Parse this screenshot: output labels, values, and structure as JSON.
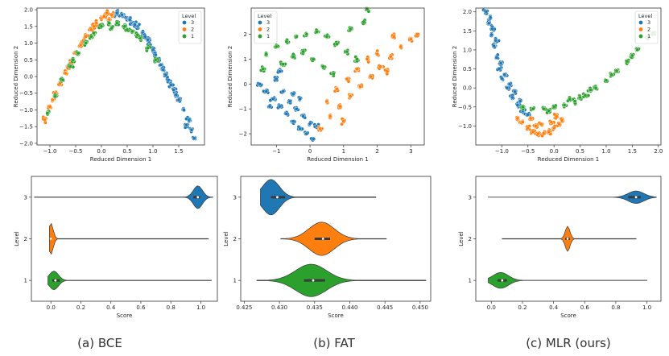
{
  "colors": {
    "level3": "#1f77b4",
    "level2": "#ff7f0e",
    "level1": "#2ca02c"
  },
  "captions": [
    "(a) BCE",
    "(b) FAT",
    "(c) MLR (ours)"
  ],
  "chart_data": [
    {
      "type": "scatter",
      "panel": "BCE-embedding",
      "xlabel": "Reduced Dimension 1",
      "ylabel": "Reduced Dimension 2",
      "xlim": [
        -1.25,
        2.0
      ],
      "ylim": [
        -2.05,
        2.05
      ],
      "xticks": [
        -1.0,
        -0.5,
        0.0,
        0.5,
        1.0,
        1.5
      ],
      "xtick_labels": [
        "−1.0",
        "−0.5",
        "0.0",
        "0.5",
        "1.0",
        "1.5"
      ],
      "yticks": [
        -2.0,
        -1.5,
        -1.0,
        -0.5,
        0.0,
        0.5,
        1.0,
        1.5,
        2.0
      ],
      "ytick_labels": [
        "−2.0",
        "−1.5",
        "−1.0",
        "−0.5",
        "0.0",
        "0.5",
        "1.0",
        "1.5",
        "2.0"
      ],
      "legend": {
        "title": "Level",
        "entries": [
          "3",
          "2",
          "1"
        ],
        "placement": "top-right"
      },
      "series": [
        {
          "name": "3",
          "points": [
            [
              1.8,
              -1.85
            ],
            [
              1.75,
              -1.6
            ],
            [
              1.7,
              -1.3
            ],
            [
              1.6,
              -1.0
            ],
            [
              1.5,
              -0.7
            ],
            [
              1.4,
              -0.4
            ],
            [
              1.3,
              -0.1
            ],
            [
              1.2,
              0.2
            ],
            [
              1.1,
              0.5
            ],
            [
              1.0,
              0.8
            ],
            [
              0.9,
              1.1
            ],
            [
              0.8,
              1.3
            ],
            [
              0.7,
              1.5
            ],
            [
              0.6,
              1.6
            ],
            [
              0.5,
              1.75
            ],
            [
              0.4,
              1.85
            ],
            [
              0.3,
              1.9
            ],
            [
              0.25,
              1.8
            ],
            [
              1.65,
              -1.45
            ],
            [
              1.45,
              -0.55
            ],
            [
              1.25,
              0.05
            ],
            [
              1.05,
              0.65
            ],
            [
              0.85,
              1.2
            ],
            [
              0.65,
              1.55
            ],
            [
              0.55,
              1.7
            ],
            [
              1.35,
              -0.25
            ],
            [
              1.15,
              0.35
            ],
            [
              0.95,
              0.95
            ]
          ]
        },
        {
          "name": "2",
          "points": [
            [
              -1.1,
              -1.3
            ],
            [
              -1.0,
              -0.9
            ],
            [
              -0.9,
              -0.5
            ],
            [
              -0.8,
              -0.2
            ],
            [
              -0.7,
              0.1
            ],
            [
              -0.6,
              0.4
            ],
            [
              -0.5,
              0.7
            ],
            [
              -0.4,
              0.95
            ],
            [
              -0.3,
              1.2
            ],
            [
              -0.2,
              1.4
            ],
            [
              -0.1,
              1.6
            ],
            [
              0.0,
              1.75
            ],
            [
              0.1,
              1.9
            ],
            [
              0.2,
              1.85
            ],
            [
              -0.95,
              -0.7
            ],
            [
              -0.65,
              0.25
            ],
            [
              -0.35,
              1.05
            ],
            [
              -0.15,
              1.5
            ],
            [
              0.05,
              1.8
            ],
            [
              0.15,
              1.7
            ]
          ]
        },
        {
          "name": "1",
          "points": [
            [
              -1.05,
              -1.1
            ],
            [
              -0.9,
              -0.6
            ],
            [
              -0.75,
              -0.1
            ],
            [
              -0.6,
              0.3
            ],
            [
              -0.45,
              0.7
            ],
            [
              -0.3,
              1.0
            ],
            [
              -0.15,
              1.3
            ],
            [
              0.0,
              1.5
            ],
            [
              0.15,
              1.6
            ],
            [
              0.3,
              1.6
            ],
            [
              0.45,
              1.5
            ],
            [
              0.6,
              1.35
            ],
            [
              0.75,
              1.15
            ],
            [
              0.9,
              0.85
            ],
            [
              1.05,
              0.5
            ],
            [
              -0.2,
              1.2
            ],
            [
              0.2,
              1.45
            ],
            [
              0.5,
              1.4
            ],
            [
              0.7,
              1.25
            ],
            [
              -0.55,
              0.5
            ]
          ]
        }
      ]
    },
    {
      "type": "scatter",
      "panel": "FAT-embedding",
      "xlabel": "Reduced Dimension 1",
      "ylabel": "Reduced Dimension 2",
      "xlim": [
        -1.75,
        3.4
      ],
      "ylim": [
        -2.45,
        3.05
      ],
      "xticks": [
        -1,
        0,
        1,
        2,
        3
      ],
      "xtick_labels": [
        "−1",
        "0",
        "1",
        "2",
        "3"
      ],
      "yticks": [
        -2,
        -1,
        0,
        1,
        2
      ],
      "ytick_labels": [
        "−2",
        "−1",
        "0",
        "1",
        "2"
      ],
      "legend": {
        "title": "Level",
        "entries": [
          "3",
          "2",
          "1"
        ],
        "placement": "top-left"
      },
      "series": [
        {
          "name": "3",
          "points": [
            [
              -1.5,
              0.0
            ],
            [
              -1.3,
              -0.3
            ],
            [
              -1.1,
              -0.6
            ],
            [
              -0.9,
              -0.9
            ],
            [
              -0.7,
              -1.2
            ],
            [
              -0.5,
              -1.5
            ],
            [
              -0.3,
              -1.8
            ],
            [
              -0.1,
              -2.0
            ],
            [
              0.1,
              -2.2
            ],
            [
              -0.8,
              -0.3
            ],
            [
              -0.6,
              -0.7
            ],
            [
              -0.4,
              -1.0
            ],
            [
              -0.2,
              -1.3
            ],
            [
              0.0,
              -1.6
            ],
            [
              -1.0,
              0.2
            ],
            [
              -0.5,
              -0.4
            ],
            [
              -1.2,
              -0.9
            ],
            [
              0.2,
              -1.7
            ],
            [
              -0.3,
              -0.6
            ],
            [
              -0.9,
              0.5
            ]
          ]
        },
        {
          "name": "2",
          "points": [
            [
              0.3,
              -1.8
            ],
            [
              0.6,
              -1.3
            ],
            [
              0.9,
              -0.9
            ],
            [
              1.2,
              -0.5
            ],
            [
              1.5,
              -0.1
            ],
            [
              1.8,
              0.3
            ],
            [
              2.1,
              0.7
            ],
            [
              2.4,
              1.1
            ],
            [
              2.7,
              1.5
            ],
            [
              3.0,
              1.8
            ],
            [
              3.2,
              2.0
            ],
            [
              0.8,
              -0.2
            ],
            [
              1.1,
              0.2
            ],
            [
              1.4,
              0.6
            ],
            [
              1.7,
              1.0
            ],
            [
              0.5,
              -0.7
            ],
            [
              2.0,
              1.2
            ],
            [
              2.3,
              0.5
            ],
            [
              1.0,
              -1.5
            ],
            [
              2.5,
              1.9
            ]
          ]
        },
        {
          "name": "1",
          "points": [
            [
              -1.3,
              1.2
            ],
            [
              -1.0,
              1.5
            ],
            [
              -0.7,
              1.7
            ],
            [
              -0.4,
              1.9
            ],
            [
              -0.1,
              2.0
            ],
            [
              0.2,
              2.1
            ],
            [
              0.5,
              1.9
            ],
            [
              0.8,
              1.6
            ],
            [
              1.1,
              1.3
            ],
            [
              1.4,
              1.0
            ],
            [
              -0.8,
              0.8
            ],
            [
              -0.5,
              1.1
            ],
            [
              -0.2,
              1.3
            ],
            [
              0.1,
              1.0
            ],
            [
              0.4,
              0.7
            ],
            [
              1.2,
              2.2
            ],
            [
              1.6,
              2.5
            ],
            [
              1.7,
              3.0
            ],
            [
              -1.4,
              0.6
            ],
            [
              0.7,
              0.4
            ]
          ]
        }
      ]
    },
    {
      "type": "scatter",
      "panel": "MLR-embedding",
      "xlabel": "Reduced Dimension 1",
      "ylabel": "Reduced Dimension 2",
      "xlim": [
        -1.5,
        2.05
      ],
      "ylim": [
        -1.5,
        2.1
      ],
      "xticks": [
        -1.0,
        -0.5,
        0.0,
        0.5,
        1.0,
        1.5,
        2.0
      ],
      "xtick_labels": [
        "−1.0",
        "−0.5",
        "0.0",
        "0.5",
        "1.0",
        "1.5",
        "2.0"
      ],
      "yticks": [
        -1.0,
        -0.5,
        0.0,
        0.5,
        1.0,
        1.5,
        2.0
      ],
      "ytick_labels": [
        "−1.0",
        "−0.5",
        "0.0",
        "0.5",
        "1.0",
        "1.5",
        "2.0"
      ],
      "legend": {
        "title": "Level",
        "entries": [
          "3",
          "2",
          "1"
        ],
        "placement": "top-right"
      },
      "series": [
        {
          "name": "3",
          "points": [
            [
              -1.3,
              2.0
            ],
            [
              -1.25,
              1.7
            ],
            [
              -1.2,
              1.4
            ],
            [
              -1.15,
              1.1
            ],
            [
              -1.1,
              0.8
            ],
            [
              -1.05,
              0.5
            ],
            [
              -1.0,
              0.25
            ],
            [
              -0.9,
              0.0
            ],
            [
              -0.8,
              -0.25
            ],
            [
              -0.7,
              -0.45
            ],
            [
              -0.6,
              -0.6
            ],
            [
              -0.5,
              -0.7
            ],
            [
              -1.22,
              1.85
            ],
            [
              -1.12,
              1.25
            ],
            [
              -1.02,
              0.65
            ],
            [
              -0.95,
              0.35
            ],
            [
              -0.85,
              0.1
            ],
            [
              -0.75,
              -0.1
            ],
            [
              -0.65,
              -0.35
            ],
            [
              -1.18,
              1.55
            ]
          ]
        },
        {
          "name": "2",
          "points": [
            [
              -0.6,
              -0.9
            ],
            [
              -0.5,
              -1.05
            ],
            [
              -0.4,
              -1.15
            ],
            [
              -0.3,
              -1.2
            ],
            [
              -0.2,
              -1.2
            ],
            [
              -0.1,
              -1.15
            ],
            [
              0.0,
              -1.05
            ],
            [
              0.1,
              -0.95
            ],
            [
              -0.45,
              -0.8
            ],
            [
              -0.25,
              -0.95
            ],
            [
              -0.05,
              -0.9
            ],
            [
              0.15,
              -0.85
            ],
            [
              -0.7,
              -0.8
            ],
            [
              -0.35,
              -1.0
            ],
            [
              0.05,
              -0.75
            ]
          ]
        },
        {
          "name": "1",
          "points": [
            [
              -0.6,
              -0.5
            ],
            [
              -0.4,
              -0.55
            ],
            [
              -0.2,
              -0.55
            ],
            [
              0.0,
              -0.5
            ],
            [
              0.2,
              -0.45
            ],
            [
              0.4,
              -0.35
            ],
            [
              0.6,
              -0.2
            ],
            [
              0.8,
              0.0
            ],
            [
              1.0,
              0.2
            ],
            [
              1.2,
              0.45
            ],
            [
              1.4,
              0.7
            ],
            [
              1.6,
              1.0
            ],
            [
              1.8,
              1.3
            ],
            [
              1.9,
              1.45
            ],
            [
              0.3,
              -0.3
            ],
            [
              0.5,
              -0.25
            ],
            [
              0.7,
              -0.05
            ],
            [
              1.1,
              0.35
            ],
            [
              1.5,
              0.85
            ],
            [
              -0.1,
              -0.6
            ]
          ]
        }
      ]
    },
    {
      "type": "violin",
      "panel": "BCE-score",
      "xlabel": "Score",
      "ylabel": "Level",
      "xlim": [
        -0.13,
        1.11
      ],
      "xticks": [
        0.0,
        0.2,
        0.4,
        0.6,
        0.8,
        1.0
      ],
      "xtick_labels": [
        "0.0",
        "0.2",
        "0.4",
        "0.6",
        "0.8",
        "1.0"
      ],
      "categories": [
        "3",
        "2",
        "1"
      ],
      "violins": [
        {
          "level": "3",
          "min": -0.11,
          "max": 1.08,
          "median": 0.98,
          "q1": 0.95,
          "q3": 0.995,
          "mode": 0.98,
          "spread": 0.03,
          "width": 0.55
        },
        {
          "level": "2",
          "min": -0.01,
          "max": 1.05,
          "median": 0.0,
          "q1": -0.005,
          "q3": 0.005,
          "mode": 0.0,
          "spread": 0.015,
          "width": 0.75
        },
        {
          "level": "1",
          "min": -0.02,
          "max": 1.07,
          "median": 0.03,
          "q1": 0.01,
          "q3": 0.06,
          "mode": 0.02,
          "spread": 0.03,
          "width": 0.45
        }
      ]
    },
    {
      "type": "violin",
      "panel": "FAT-score",
      "xlabel": "Score",
      "ylabel": "Level",
      "xlim": [
        0.4245,
        0.4515
      ],
      "xticks": [
        0.425,
        0.43,
        0.435,
        0.44,
        0.445,
        0.45
      ],
      "xtick_labels": [
        "0.425",
        "0.430",
        "0.435",
        "0.440",
        "0.445",
        "0.450"
      ],
      "categories": [
        "3",
        "2",
        "1"
      ],
      "violins": [
        {
          "level": "3",
          "min": 0.4273,
          "max": 0.4437,
          "median": 0.4297,
          "q1": 0.4288,
          "q3": 0.4308,
          "mode": 0.4288,
          "spread": 0.0012,
          "width": 0.85
        },
        {
          "level": "2",
          "min": 0.4302,
          "max": 0.4452,
          "median": 0.4362,
          "q1": 0.435,
          "q3": 0.4372,
          "mode": 0.436,
          "spread": 0.0018,
          "width": 0.8
        },
        {
          "level": "1",
          "min": 0.4268,
          "max": 0.4508,
          "median": 0.4348,
          "q1": 0.4335,
          "q3": 0.4365,
          "mode": 0.4345,
          "spread": 0.0022,
          "width": 0.78
        }
      ]
    },
    {
      "type": "violin",
      "panel": "MLR-score",
      "xlabel": "Score",
      "ylabel": "Level",
      "xlim": [
        -0.1,
        1.09
      ],
      "xticks": [
        0.0,
        0.2,
        0.4,
        0.6,
        0.8,
        1.0
      ],
      "xtick_labels": [
        "0.0",
        "0.2",
        "0.4",
        "0.6",
        "0.8",
        "1.0"
      ],
      "categories": [
        "3",
        "2",
        "1"
      ],
      "violins": [
        {
          "level": "3",
          "min": -0.02,
          "max": 1.06,
          "median": 0.93,
          "q1": 0.88,
          "q3": 0.96,
          "mode": 0.93,
          "spread": 0.05,
          "width": 0.3
        },
        {
          "level": "2",
          "min": 0.07,
          "max": 0.93,
          "median": 0.49,
          "q1": 0.475,
          "q3": 0.505,
          "mode": 0.49,
          "spread": 0.015,
          "width": 0.6
        },
        {
          "level": "1",
          "min": -0.02,
          "max": 1.0,
          "median": 0.07,
          "q1": 0.04,
          "q3": 0.1,
          "mode": 0.06,
          "spread": 0.05,
          "width": 0.38
        }
      ]
    }
  ]
}
